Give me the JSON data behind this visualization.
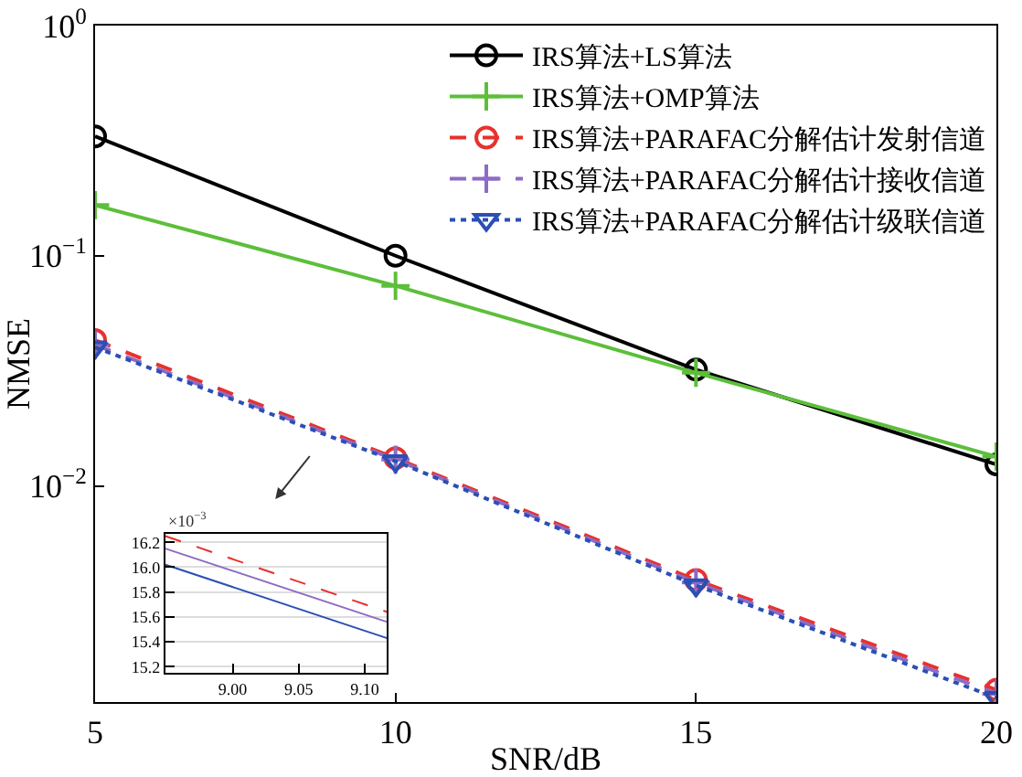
{
  "chart_data": [
    {
      "type": "line",
      "xlabel": "SNR/dB",
      "ylabel": "NMSE",
      "log": "y",
      "x": [
        5,
        10,
        15,
        20
      ],
      "xlim": [
        5,
        20
      ],
      "xticks": [
        5,
        10,
        15,
        20
      ],
      "ylim": [
        0.00115,
        1
      ],
      "yticks": [
        {
          "value": 1,
          "label": "10$^{0}$"
        },
        {
          "value": 0.1,
          "label": "10$^{−1}$"
        },
        {
          "value": 0.01,
          "label": "10$^{−2}$"
        }
      ],
      "legend": "top right",
      "grid": false,
      "series": [
        {
          "name": "IRS算法+LS算法",
          "color": "#000000",
          "values": [
            0.33,
            0.1,
            0.032,
            0.0124
          ],
          "marker": "circle",
          "line_style": "solid"
        },
        {
          "name": "IRS算法+OMP算法",
          "color": "#5cbf3a",
          "values": [
            0.166,
            0.074,
            0.031,
            0.0134
          ],
          "marker": "cross",
          "line_style": "solid"
        },
        {
          "name": "IRS算法+PARAFAC分解估计发射信道",
          "color": "#e8312e",
          "values": [
            0.043,
            0.0132,
            0.0039,
            0.0013
          ],
          "marker": "circle",
          "line_style": "dashed"
        },
        {
          "name": "IRS算法+PARAFAC分解估计接收信道",
          "color": "#8e6bc4",
          "values": [
            0.041,
            0.013,
            0.0038,
            0.00125
          ],
          "marker": "cross",
          "line_style": "dashed"
        },
        {
          "name": "IRS算法+PARAFAC分解估计级联信道",
          "color": "#2a4fb5",
          "values": [
            0.04,
            0.0128,
            0.0037,
            0.0012
          ],
          "marker": "triangle",
          "line_style": "dotted"
        }
      ]
    },
    {
      "type": "line",
      "x": [
        8.949,
        9.117
      ],
      "xlim": [
        8.949,
        9.117
      ],
      "xticks": [
        {
          "value": 9.0,
          "label": "9.00"
        },
        {
          "value": 9.05,
          "label": "9.05"
        },
        {
          "value": 9.1,
          "label": "9.10"
        }
      ],
      "ylim": [
        15.15,
        16.27
      ],
      "yticks": [
        15.2,
        15.4,
        15.6,
        15.8,
        {
          "value": 16.0,
          "label": "16.0"
        },
        16.2
      ],
      "grid": "y",
      "annotations": [
        "×10$^{−3}$"
      ],
      "series": [
        {
          "color": "#e8312e",
          "values": [
            16.25,
            15.64
          ],
          "line_style": "dashed"
        },
        {
          "color": "#8e6bc4",
          "values": [
            16.15,
            15.56
          ],
          "line_style": "solid"
        },
        {
          "color": "#2a4fb5",
          "values": [
            16.02,
            15.43
          ],
          "line_style": "solid"
        }
      ]
    }
  ]
}
